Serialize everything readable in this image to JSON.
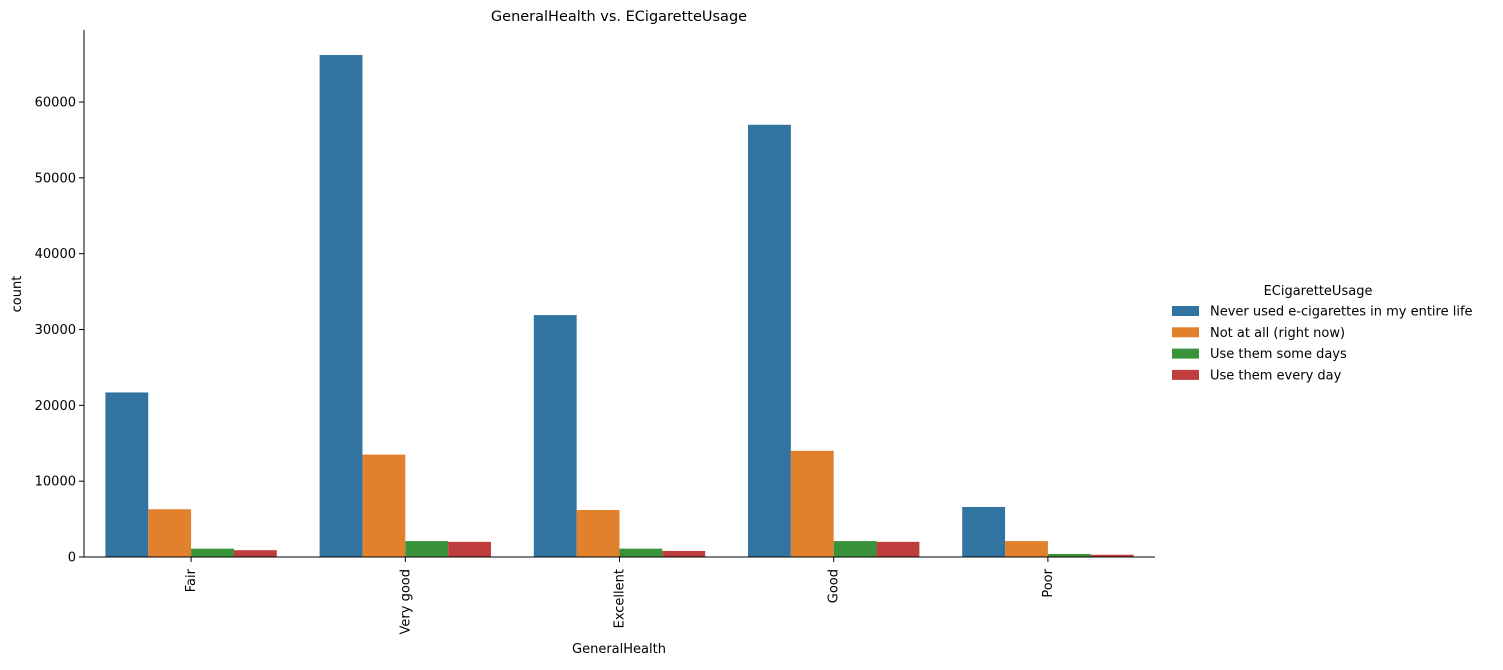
{
  "chart_data": {
    "type": "bar",
    "title": "GeneralHealth vs. ECigaretteUsage",
    "xlabel": "GeneralHealth",
    "ylabel": "count",
    "categories": [
      "Fair",
      "Very good",
      "Excellent",
      "Good",
      "Poor"
    ],
    "ylim": [
      0,
      69500
    ],
    "yticks": [
      0,
      10000,
      20000,
      30000,
      40000,
      50000,
      60000
    ],
    "grid": false,
    "legend_title": "ECigaretteUsage",
    "legend_position": "right",
    "series": [
      {
        "name": "Never used e-cigarettes in my entire life",
        "color": "#3274a1",
        "values": [
          21700,
          66200,
          31900,
          57000,
          6600
        ]
      },
      {
        "name": "Not at all (right now)",
        "color": "#e1812c",
        "values": [
          6300,
          13500,
          6200,
          14000,
          2100
        ]
      },
      {
        "name": "Use them some days",
        "color": "#3a923a",
        "values": [
          1100,
          2100,
          1100,
          2100,
          400
        ]
      },
      {
        "name": "Use them every day",
        "color": "#c03d3e",
        "values": [
          900,
          2000,
          800,
          2000,
          300
        ]
      }
    ]
  }
}
